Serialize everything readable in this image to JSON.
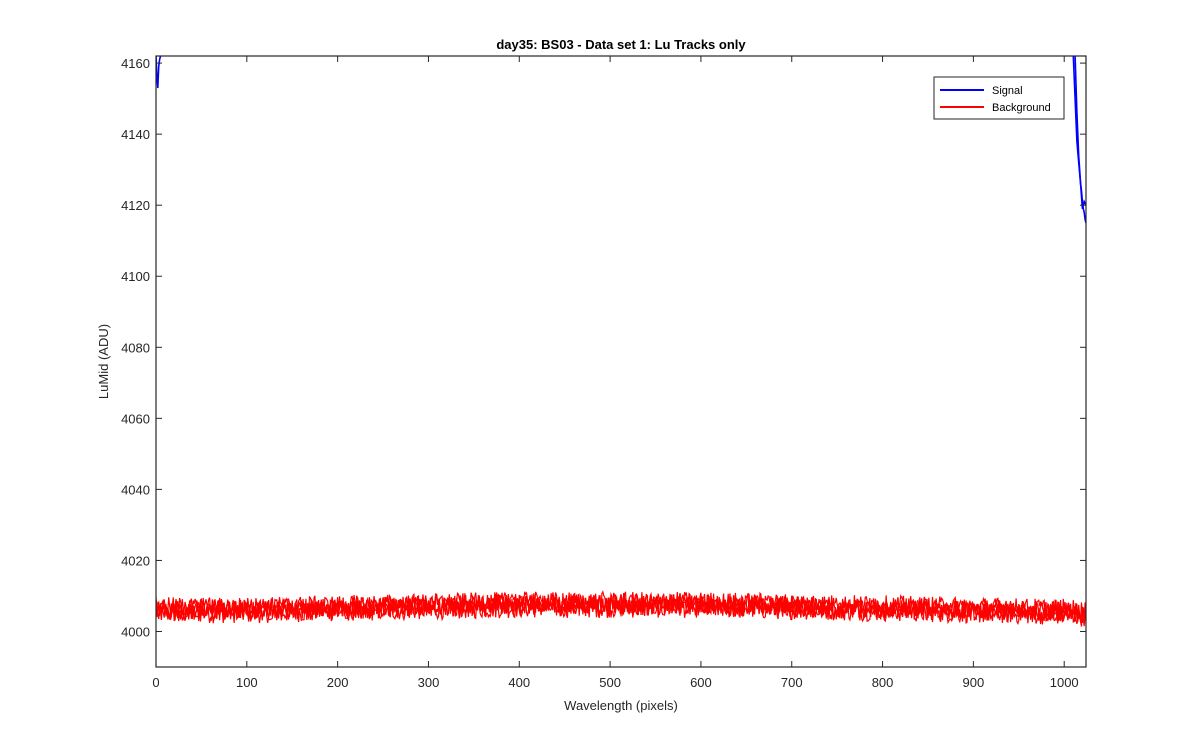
{
  "chart_data": {
    "type": "line",
    "title": "day35: BS03 - Data set 1: Lu Tracks only",
    "xlabel": "Wavelength (pixels)",
    "ylabel": "LuMid (ADU)",
    "xlim": [
      0,
      1024
    ],
    "ylim": [
      3990,
      4162
    ],
    "xticks": [
      0,
      100,
      200,
      300,
      400,
      500,
      600,
      700,
      800,
      900,
      1000
    ],
    "yticks": [
      4000,
      4020,
      4040,
      4060,
      4080,
      4100,
      4120,
      4140,
      4160
    ],
    "grid": false,
    "legend_position": "top-right",
    "series": [
      {
        "name": "Signal",
        "color": "#0000ff",
        "segments": [
          {
            "x": [
              0,
              1,
              2,
              3,
              4,
              5
            ],
            "y": [
              4162,
              4156,
              4153,
              4159,
              4161,
              4162
            ]
          },
          {
            "x": [
              1010,
              1012,
              1014,
              1016,
              1018,
              1019,
              1020,
              1021,
              1022,
              1023,
              1024
            ],
            "y": [
              4162,
              4150,
              4138,
              4132,
              4126,
              4124,
              4121,
              4119,
              4118,
              4116,
              4115
            ]
          },
          {
            "x": [
              1012,
              1014,
              1016,
              1018,
              1020,
              1022,
              1024
            ],
            "y": [
              4162,
              4146,
              4134,
              4126,
              4119,
              4121,
              4120
            ]
          }
        ]
      },
      {
        "name": "Background",
        "color": "#ff0000",
        "baseline_x": [
          0,
          100,
          200,
          300,
          400,
          500,
          600,
          700,
          800,
          900,
          1000,
          1024
        ],
        "baseline_y": [
          4006,
          4006,
          4006.5,
          4007,
          4007.5,
          4007.5,
          4007.5,
          4007,
          4006.5,
          4006,
          4005.5,
          4005
        ],
        "noise_amplitude": 4,
        "trace_count": 4
      }
    ]
  }
}
